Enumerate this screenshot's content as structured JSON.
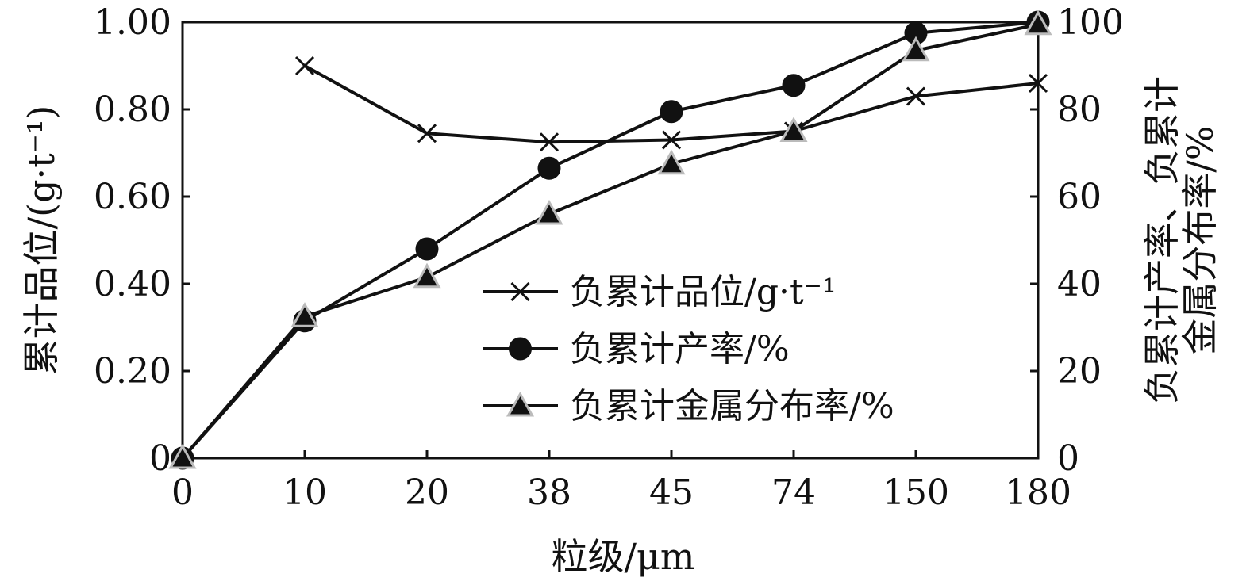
{
  "chart_data": {
    "type": "line",
    "categories": [
      "0",
      "10",
      "20",
      "38",
      "45",
      "74",
      "150",
      "180"
    ],
    "xlabel": "粒级/μm",
    "ylabel_left": "累计品位/(g·t⁻¹)",
    "ylabel_right": [
      "负累计产率、负累计",
      "金属分布率/%"
    ],
    "y_left": {
      "min": 0,
      "max": 1.0,
      "ticks": [
        "0",
        "0.20",
        "0.40",
        "0.60",
        "0.80",
        "1.00"
      ]
    },
    "y_right": {
      "min": 0,
      "max": 100,
      "ticks": [
        "0",
        "20",
        "40",
        "60",
        "80",
        "100"
      ]
    },
    "grid": false,
    "legend_position": "center-right",
    "series": [
      {
        "name": "负累计品位/g·t⁻¹",
        "axis": "left",
        "marker": "x",
        "values": [
          null,
          0.9,
          0.745,
          0.725,
          0.73,
          0.75,
          0.83,
          0.86
        ]
      },
      {
        "name": "负累计产率/%",
        "axis": "right",
        "marker": "circle",
        "values": [
          0,
          31.5,
          48,
          66.5,
          79.5,
          85.5,
          97.5,
          100
        ]
      },
      {
        "name": "负累计金属分布率/%",
        "axis": "right",
        "marker": "triangle",
        "values": [
          0,
          32.5,
          41.5,
          56,
          67.5,
          75,
          93.5,
          99.5
        ]
      }
    ]
  }
}
